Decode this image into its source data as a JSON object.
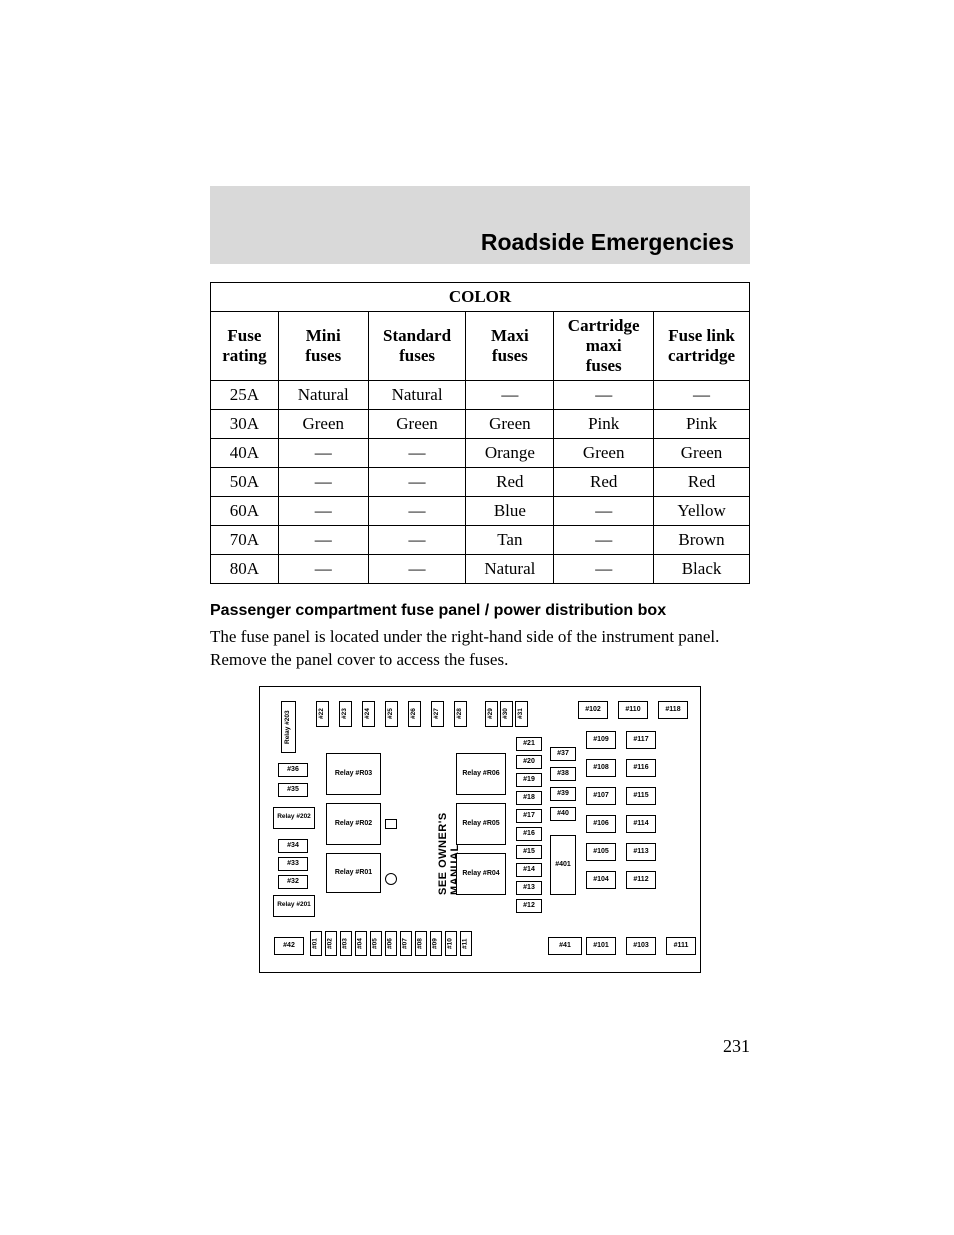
{
  "header": {
    "title": "Roadside Emergencies"
  },
  "table": {
    "super_header": "COLOR",
    "columns": [
      "Fuse rating",
      "Mini fuses",
      "Standard fuses",
      "Maxi fuses",
      "Cartridge maxi fuses",
      "Fuse link cartridge"
    ],
    "rows": [
      [
        "25A",
        "Natural",
        "Natural",
        "—",
        "—",
        "—"
      ],
      [
        "30A",
        "Green",
        "Green",
        "Green",
        "Pink",
        "Pink"
      ],
      [
        "40A",
        "—",
        "—",
        "Orange",
        "Green",
        "Green"
      ],
      [
        "50A",
        "—",
        "—",
        "Red",
        "Red",
        "Red"
      ],
      [
        "60A",
        "—",
        "—",
        "Blue",
        "—",
        "Yellow"
      ],
      [
        "70A",
        "—",
        "—",
        "Tan",
        "—",
        "Brown"
      ],
      [
        "80A",
        "—",
        "—",
        "Natural",
        "—",
        "Black"
      ]
    ]
  },
  "section": {
    "subtitle": "Passenger compartment fuse panel / power distribution box",
    "body": "The fuse panel is located under the right-hand side of the instrument panel. Remove the panel cover to access the fuses."
  },
  "diagram": {
    "vertical_text": "SEE OWNER'S MANUAL",
    "top_small": [
      "#22",
      "#23",
      "#24",
      "#25",
      "#26",
      "#27",
      "#28",
      "#29",
      "#30",
      "#31"
    ],
    "top_large": [
      "#102",
      "#110",
      "#118"
    ],
    "left_relay_big": [
      "Relay #203",
      "Relay #202",
      "Relay #201"
    ],
    "left_small": [
      "#36",
      "#35",
      "#34",
      "#33",
      "#32"
    ],
    "mid_relays": [
      "Relay #R03",
      "Relay #R02",
      "Relay #R01"
    ],
    "right_relays": [
      "Relay #R06",
      "Relay #R05",
      "Relay #R04"
    ],
    "col_mid": [
      "#21",
      "#20",
      "#19",
      "#18",
      "#17",
      "#16",
      "#15",
      "#14",
      "#13",
      "#12"
    ],
    "col_aux": [
      "#37",
      "#38",
      "#39",
      "#40"
    ],
    "big401": "#401",
    "big41": "#41",
    "big42": "#42",
    "right_pairs": [
      [
        "#109",
        "#117"
      ],
      [
        "#108",
        "#116"
      ],
      [
        "#107",
        "#115"
      ],
      [
        "#106",
        "#114"
      ],
      [
        "#105",
        "#113"
      ],
      [
        "#104",
        "#112"
      ]
    ],
    "bot_right": [
      "#101",
      "#103",
      "#111"
    ],
    "bot_small": [
      "#01",
      "#02",
      "#03",
      "#04",
      "#05",
      "#06",
      "#07",
      "#08",
      "#09",
      "#10",
      "#11"
    ]
  },
  "page_number": "231",
  "style": {
    "header_bg": "#d9d9d9",
    "border": "#000000",
    "font_body": "Times New Roman",
    "font_ui": "Arial"
  }
}
